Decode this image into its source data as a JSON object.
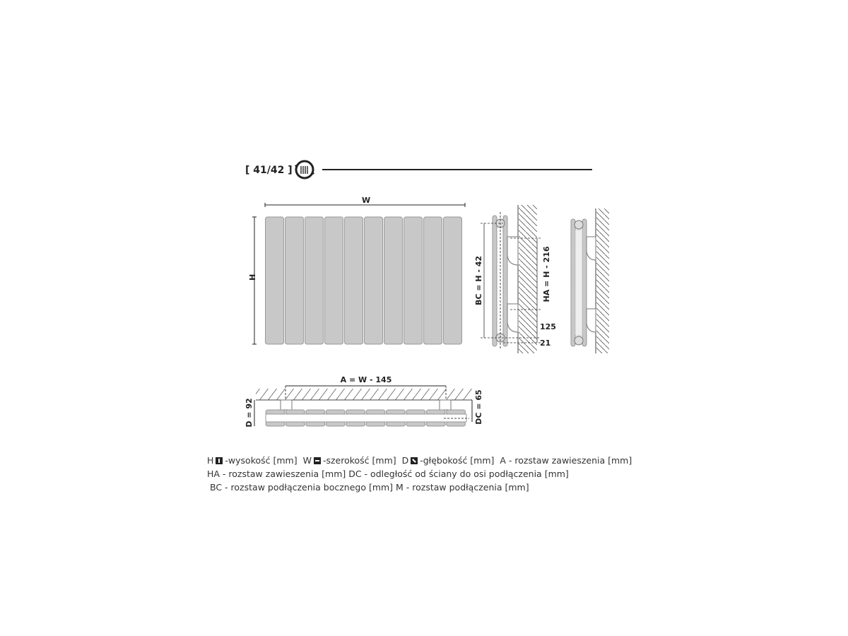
{
  "header": {
    "model_label": "[ 41/42 ]",
    "icon": "rotatable-radiator-icon"
  },
  "front_view": {
    "width_label": "W",
    "height_label": "H",
    "panel_count": 10
  },
  "side_view": {
    "bc_label": "BC = H - 42",
    "ha_label": "HA = H - 216",
    "dim_125": "125",
    "dim_21": "21"
  },
  "top_view": {
    "a_label": "A = W - 145",
    "d_label": "D = 92",
    "dc_label": "DC = 65"
  },
  "colors": {
    "panel_fill": "#c8c8c8",
    "panel_stroke": "#999999",
    "line": "#222222"
  },
  "legend": {
    "line1": {
      "h": "H",
      "h_text": "-wysokość [mm]",
      "w": "W",
      "w_text": "-szerokość [mm]",
      "d": "D",
      "d_text": "-głębokość [mm]",
      "a_text": "A - rozstaw zawieszenia [mm]"
    },
    "line2": "HA - rozstaw zawieszenia [mm] DC - odległość od ściany do osi podłączenia [mm]",
    "line3": "BC - rozstaw podłączenia bocznego [mm]  M - rozstaw podłączenia [mm]"
  }
}
